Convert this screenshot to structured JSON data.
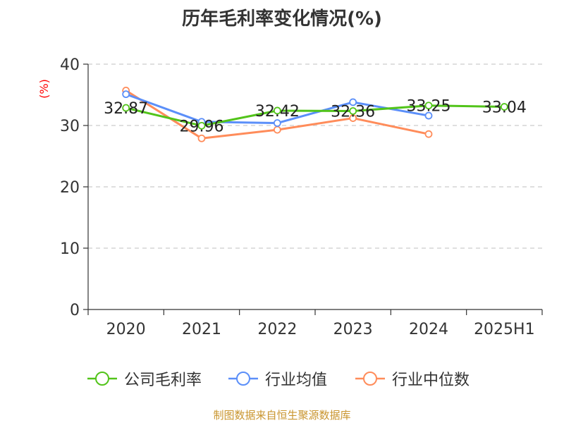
{
  "chart_data": {
    "type": "line",
    "title": "历年毛利率变化情况(%)",
    "ylabel": "(%)",
    "xlabel": "",
    "categories": [
      "2020",
      "2021",
      "2022",
      "2023",
      "2024",
      "2025H1"
    ],
    "ylim": [
      0,
      40
    ],
    "yticks": [
      0,
      10,
      20,
      30,
      40
    ],
    "grid": true,
    "legend_position": "bottom",
    "series": [
      {
        "name": "公司毛利率",
        "color": "#52c41a",
        "values": [
          32.87,
          29.96,
          32.42,
          32.36,
          33.25,
          33.04
        ],
        "labels": [
          "32.87",
          "29.96",
          "32.42",
          "32.36",
          "33.25",
          "33.04"
        ]
      },
      {
        "name": "行业均值",
        "color": "#5b8ff9",
        "values": [
          35.1,
          30.6,
          30.4,
          33.8,
          31.6,
          null
        ]
      },
      {
        "name": "行业中位数",
        "color": "#ff8c5a",
        "values": [
          35.7,
          27.9,
          29.3,
          31.2,
          28.6,
          null
        ]
      }
    ]
  },
  "axis_color": "#ff0000",
  "source": {
    "text": "制图数据来自恒生聚源数据库",
    "color": "#c9952e"
  }
}
